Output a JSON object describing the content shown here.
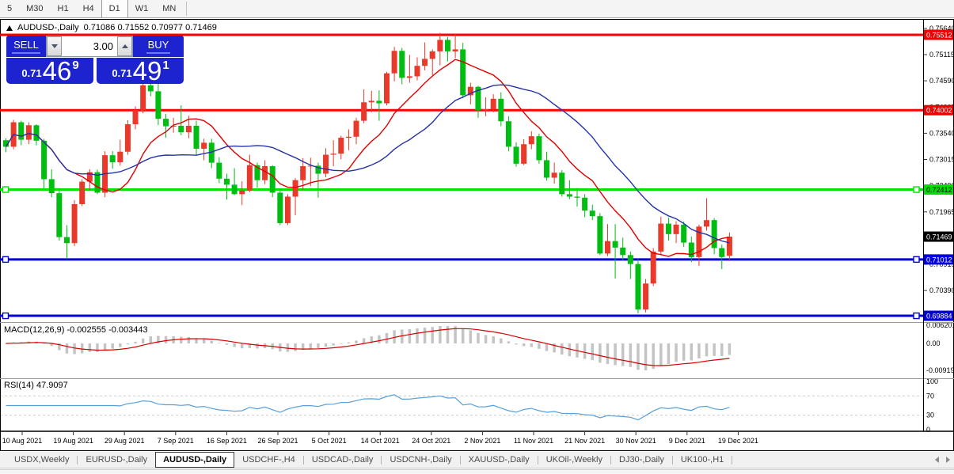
{
  "toolbar": {
    "timeframes": [
      {
        "label": "5",
        "active": false
      },
      {
        "label": "M30",
        "active": false
      },
      {
        "label": "H1",
        "active": false
      },
      {
        "label": "H4",
        "active": false
      },
      {
        "label": "D1",
        "active": true
      },
      {
        "label": "W1",
        "active": false
      },
      {
        "label": "MN",
        "active": false
      }
    ]
  },
  "chart_title": {
    "symbol": "AUDUSD-,Daily",
    "ohlc_text": "0.71086 0.71552 0.70977 0.71469"
  },
  "trade_panel": {
    "sell_label": "SELL",
    "buy_label": "BUY",
    "volume": "3.00",
    "sell_price": {
      "head": "0.71",
      "big": "46",
      "sup": "9"
    },
    "buy_price": {
      "head": "0.71",
      "big": "49",
      "sup": "1"
    },
    "panel_color": "#1c23cf"
  },
  "price_axis": {
    "ticks": [
      "0.75640",
      "0.75115",
      "0.74590",
      "0.74065",
      "0.73540",
      "0.73015",
      "0.72490",
      "0.71965",
      "0.71440",
      "0.70915",
      "0.70390",
      "0.69865"
    ],
    "tags": [
      {
        "text": "0.75512",
        "value": 0.75512,
        "bg": "#f00000",
        "fg": "#ffffff"
      },
      {
        "text": "0.74002",
        "value": 0.74002,
        "bg": "#f00000",
        "fg": "#ffffff"
      },
      {
        "text": "0.72412",
        "value": 0.72412,
        "bg": "#00dd00",
        "fg": "#000000"
      },
      {
        "text": "0.71469",
        "value": 0.71469,
        "bg": "#000000",
        "fg": "#ffffff"
      },
      {
        "text": "0.71012",
        "value": 0.71012,
        "bg": "#0000dd",
        "fg": "#ffffff"
      },
      {
        "text": "0.69884",
        "value": 0.69884,
        "bg": "#0000dd",
        "fg": "#ffffff"
      }
    ]
  },
  "time_axis": {
    "labels": [
      "10 Aug 2021",
      "19 Aug 2021",
      "29 Aug 2021",
      "7 Sep 2021",
      "16 Sep 2021",
      "26 Sep 2021",
      "5 Oct 2021",
      "14 Oct 2021",
      "24 Oct 2021",
      "2 Nov 2021",
      "11 Nov 2021",
      "21 Nov 2021",
      "30 Nov 2021",
      "9 Dec 2021",
      "19 Dec 2021"
    ]
  },
  "macd": {
    "label": "MACD(12,26,9) -0.002555 -0.003443",
    "axis": [
      "0.006201",
      "0.00",
      "-0.00919"
    ],
    "fast": 12,
    "slow": 26,
    "signal": 9,
    "hist_color": "#c4c4c4",
    "signal_color": "#d40000"
  },
  "rsi": {
    "label": "RSI(14) 47.9097",
    "axis": [
      "100",
      "70",
      "30",
      "0"
    ],
    "period": 14,
    "line_color": "#55a0dd",
    "levels": [
      70,
      30
    ]
  },
  "tabs": {
    "items": [
      {
        "label": "USDX,Weekly",
        "active": false
      },
      {
        "label": "EURUSD-,Daily",
        "active": false
      },
      {
        "label": "AUDUSD-,Daily",
        "active": true
      },
      {
        "label": "USDCHF-,H4",
        "active": false
      },
      {
        "label": "USDCAD-,Daily",
        "active": false
      },
      {
        "label": "USDCNH-,Daily",
        "active": false
      },
      {
        "label": "XAUUSD-,Daily",
        "active": false
      },
      {
        "label": "UKOil-,Weekly",
        "active": false
      },
      {
        "label": "DJ30-,Daily",
        "active": false
      },
      {
        "label": "UK100-,H1",
        "active": false
      }
    ]
  },
  "chart_data": {
    "type": "candlestick",
    "symbol": "AUDUSD-",
    "timeframe": "Daily",
    "last_ohlc": {
      "open": 0.71086,
      "high": 0.71552,
      "low": 0.70977,
      "close": 0.71469
    },
    "ylim": [
      0.69758,
      0.75765
    ],
    "bull_color": "#e8392a",
    "bear_color": "#00bd12",
    "ma": [
      {
        "period": 10,
        "color": "#e00000"
      },
      {
        "period": 21,
        "color": "#2633a8"
      }
    ],
    "levels": [
      {
        "price": 0.75512,
        "color": "#ff0000",
        "handles": false
      },
      {
        "price": 0.74002,
        "color": "#ff0000",
        "handles": false
      },
      {
        "price": 0.72412,
        "color": "#00e400",
        "handles": true
      },
      {
        "price": 0.71012,
        "color": "#0000d6",
        "handles": true
      },
      {
        "price": 0.69884,
        "color": "#0000d6",
        "handles": true
      }
    ],
    "ohlc": [
      [
        0.734,
        0.7344,
        0.7316,
        0.7327
      ],
      [
        0.7327,
        0.7381,
        0.7322,
        0.7376
      ],
      [
        0.7376,
        0.7379,
        0.733,
        0.7341
      ],
      [
        0.7341,
        0.7376,
        0.7332,
        0.737
      ],
      [
        0.737,
        0.7372,
        0.733,
        0.7339
      ],
      [
        0.7339,
        0.7343,
        0.7242,
        0.7262
      ],
      [
        0.7262,
        0.7282,
        0.7226,
        0.7234
      ],
      [
        0.7234,
        0.7244,
        0.7139,
        0.7146
      ],
      [
        0.7146,
        0.717,
        0.7102,
        0.7134
      ],
      [
        0.7134,
        0.722,
        0.7128,
        0.7212
      ],
      [
        0.7212,
        0.7262,
        0.7208,
        0.7257
      ],
      [
        0.7257,
        0.7282,
        0.724,
        0.7276
      ],
      [
        0.7276,
        0.7281,
        0.7232,
        0.7235
      ],
      [
        0.7235,
        0.7318,
        0.7226,
        0.731
      ],
      [
        0.731,
        0.7318,
        0.7283,
        0.7296
      ],
      [
        0.7296,
        0.7341,
        0.7289,
        0.7317
      ],
      [
        0.7317,
        0.738,
        0.7311,
        0.7372
      ],
      [
        0.7372,
        0.7408,
        0.7362,
        0.74
      ],
      [
        0.74,
        0.7462,
        0.7394,
        0.745
      ],
      [
        0.745,
        0.7463,
        0.7428,
        0.7438
      ],
      [
        0.7438,
        0.7468,
        0.737,
        0.7383
      ],
      [
        0.7383,
        0.7393,
        0.7345,
        0.7368
      ],
      [
        0.7368,
        0.7385,
        0.7355,
        0.7369
      ],
      [
        0.7369,
        0.741,
        0.735,
        0.7356
      ],
      [
        0.7356,
        0.7389,
        0.7344,
        0.7369
      ],
      [
        0.7369,
        0.7379,
        0.731,
        0.7323
      ],
      [
        0.7323,
        0.7343,
        0.73,
        0.7335
      ],
      [
        0.7335,
        0.7343,
        0.7284,
        0.7295
      ],
      [
        0.7295,
        0.7306,
        0.7254,
        0.7263
      ],
      [
        0.7263,
        0.7273,
        0.7221,
        0.7251
      ],
      [
        0.7251,
        0.7284,
        0.723,
        0.7232
      ],
      [
        0.7232,
        0.7258,
        0.721,
        0.7239
      ],
      [
        0.7239,
        0.7311,
        0.7236,
        0.729
      ],
      [
        0.729,
        0.7295,
        0.7245,
        0.726
      ],
      [
        0.726,
        0.73,
        0.7252,
        0.7288
      ],
      [
        0.7288,
        0.729,
        0.7226,
        0.7235
      ],
      [
        0.7235,
        0.7242,
        0.717,
        0.7174
      ],
      [
        0.7174,
        0.7232,
        0.717,
        0.7227
      ],
      [
        0.7227,
        0.7264,
        0.719,
        0.726
      ],
      [
        0.726,
        0.7304,
        0.724,
        0.7288
      ],
      [
        0.7288,
        0.7305,
        0.7248,
        0.7289
      ],
      [
        0.7289,
        0.7295,
        0.7225,
        0.7273
      ],
      [
        0.7273,
        0.7324,
        0.7266,
        0.7311
      ],
      [
        0.7311,
        0.734,
        0.7288,
        0.7313
      ],
      [
        0.7313,
        0.7349,
        0.7302,
        0.7345
      ],
      [
        0.7345,
        0.7362,
        0.732,
        0.7347
      ],
      [
        0.7347,
        0.7385,
        0.7332,
        0.7379
      ],
      [
        0.7379,
        0.7442,
        0.7374,
        0.7416
      ],
      [
        0.7416,
        0.7439,
        0.7396,
        0.7419
      ],
      [
        0.7419,
        0.744,
        0.7379,
        0.7414
      ],
      [
        0.7414,
        0.7477,
        0.741,
        0.7474
      ],
      [
        0.7474,
        0.7527,
        0.7458,
        0.7519
      ],
      [
        0.7519,
        0.7525,
        0.7452,
        0.7465
      ],
      [
        0.7465,
        0.7511,
        0.7455,
        0.7468
      ],
      [
        0.7468,
        0.7506,
        0.746,
        0.7489
      ],
      [
        0.7489,
        0.7536,
        0.748,
        0.7503
      ],
      [
        0.7503,
        0.7522,
        0.747,
        0.7518
      ],
      [
        0.7518,
        0.7555,
        0.749,
        0.7541
      ],
      [
        0.7541,
        0.7547,
        0.7498,
        0.7518
      ],
      [
        0.7518,
        0.7552,
        0.7505,
        0.7522
      ],
      [
        0.7522,
        0.7535,
        0.7424,
        0.743
      ],
      [
        0.743,
        0.7455,
        0.7412,
        0.7447
      ],
      [
        0.7447,
        0.7449,
        0.7385,
        0.74
      ],
      [
        0.74,
        0.7426,
        0.7388,
        0.7402
      ],
      [
        0.7402,
        0.7432,
        0.7396,
        0.7423
      ],
      [
        0.7423,
        0.7436,
        0.7368,
        0.7378
      ],
      [
        0.7378,
        0.7388,
        0.7318,
        0.7327
      ],
      [
        0.7327,
        0.7336,
        0.7287,
        0.7293
      ],
      [
        0.7293,
        0.7342,
        0.729,
        0.7332
      ],
      [
        0.7332,
        0.7358,
        0.7322,
        0.7348
      ],
      [
        0.7348,
        0.7353,
        0.7293,
        0.73
      ],
      [
        0.73,
        0.7317,
        0.7259,
        0.7265
      ],
      [
        0.7265,
        0.7295,
        0.7253,
        0.7275
      ],
      [
        0.7275,
        0.728,
        0.7227,
        0.7232
      ],
      [
        0.7232,
        0.726,
        0.7222,
        0.7227
      ],
      [
        0.7227,
        0.7244,
        0.7207,
        0.7225
      ],
      [
        0.7225,
        0.7232,
        0.7186,
        0.7199
      ],
      [
        0.7199,
        0.7211,
        0.718,
        0.7188
      ],
      [
        0.7188,
        0.7194,
        0.711,
        0.7113
      ],
      [
        0.7113,
        0.7172,
        0.7108,
        0.7138
      ],
      [
        0.7138,
        0.7172,
        0.7063,
        0.7125
      ],
      [
        0.7125,
        0.7145,
        0.71,
        0.711
      ],
      [
        0.711,
        0.7117,
        0.7062,
        0.7092
      ],
      [
        0.7092,
        0.7102,
        0.6993,
        0.7001
      ],
      [
        0.7001,
        0.7062,
        0.6995,
        0.7053
      ],
      [
        0.7053,
        0.7124,
        0.7048,
        0.7117
      ],
      [
        0.7117,
        0.7187,
        0.7112,
        0.7173
      ],
      [
        0.7173,
        0.7185,
        0.7139,
        0.7152
      ],
      [
        0.7152,
        0.7178,
        0.7134,
        0.7171
      ],
      [
        0.7171,
        0.7177,
        0.7126,
        0.7135
      ],
      [
        0.7135,
        0.7147,
        0.7096,
        0.7106
      ],
      [
        0.7106,
        0.7171,
        0.7088,
        0.7167
      ],
      [
        0.7167,
        0.7224,
        0.7159,
        0.718
      ],
      [
        0.718,
        0.7184,
        0.7112,
        0.7124
      ],
      [
        0.7124,
        0.7131,
        0.7082,
        0.7106
      ],
      [
        0.71086,
        0.71552,
        0.70977,
        0.71469
      ]
    ]
  }
}
